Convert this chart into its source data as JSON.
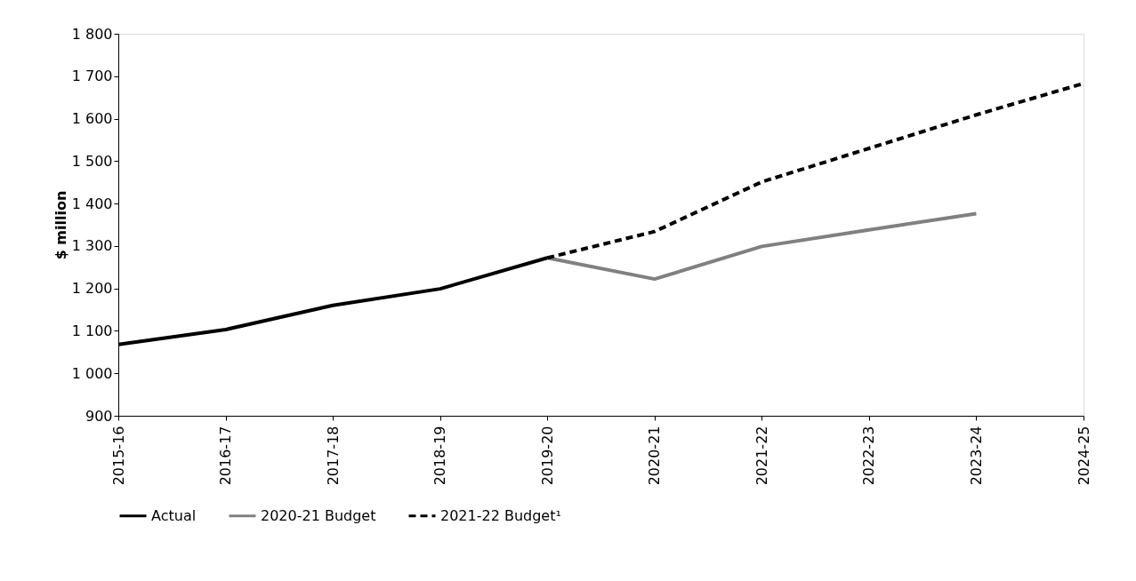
{
  "chart_data": {
    "type": "line",
    "ylabel": "$ million",
    "categories": [
      "2015-16",
      "2016-17",
      "2017-18",
      "2018-19",
      "2019-20",
      "2020-21",
      "2021-22",
      "2022-23",
      "2023-24",
      "2024-25"
    ],
    "series": [
      {
        "name": "Actual",
        "color": "#000000",
        "line_style": "solid",
        "values": [
          1068,
          1103,
          1160,
          1199,
          1272,
          null,
          null,
          null,
          null,
          null
        ]
      },
      {
        "name": "2020-21 Budget",
        "color": "#808080",
        "line_style": "solid",
        "values": [
          null,
          null,
          null,
          null,
          1272,
          1222,
          1299,
          1338,
          1376,
          null
        ]
      },
      {
        "name": "2021-22 Budget¹",
        "color": "#000000",
        "line_style": "dashed",
        "values": [
          null,
          null,
          null,
          null,
          1272,
          1334,
          1451,
          1530,
          1609,
          1683
        ]
      }
    ],
    "ylim": [
      900,
      1800
    ],
    "yticks": [
      900,
      {
        "value": 1000,
        "label": "1 000"
      },
      {
        "value": 1100,
        "label": "1 100"
      },
      {
        "value": 1200,
        "label": "1 200"
      },
      {
        "value": 1300,
        "label": "1 300"
      },
      {
        "value": 1400,
        "label": "1 400"
      },
      {
        "value": 1500,
        "label": "1 500"
      },
      {
        "value": 1600,
        "label": "1 600"
      },
      {
        "value": 1700,
        "label": "1 700"
      },
      {
        "value": 1800,
        "label": "1 800"
      }
    ],
    "grid": false,
    "legend": "bottom",
    "marker": "none"
  }
}
